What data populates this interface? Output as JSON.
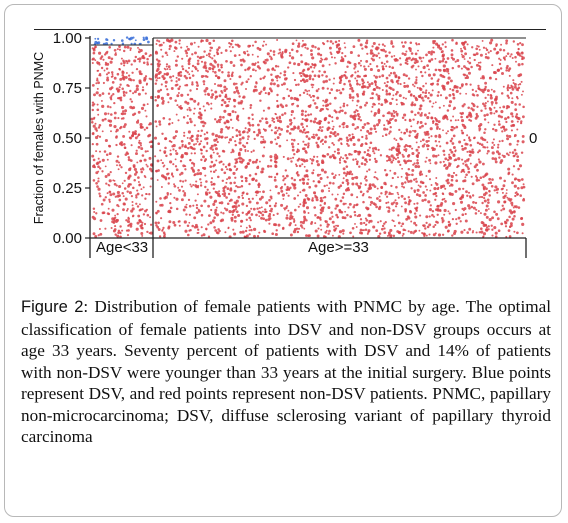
{
  "chart_data": {
    "type": "scatter",
    "ylabel": "Fraction of females with PNMC",
    "ylim": [
      0,
      1
    ],
    "y_ticks": [
      "0.00",
      "0.25",
      "0.50",
      "0.75",
      "1.00"
    ],
    "categories": [
      "Age<33",
      "Age>=33"
    ],
    "right_label": "0",
    "category_fraction_boundary": [
      0.963,
      0.995
    ],
    "series": [
      {
        "name": "DSV",
        "color": "#3a6fd8"
      },
      {
        "name": "non-DSV",
        "color": "#d9434b"
      }
    ]
  },
  "caption": {
    "label": "Figure 2",
    "text": ": Distribution of female patients with PNMC by age. The optimal classification of female patients into DSV and non-DSV groups occurs at age 33 years. Seventy percent of patients with DSV and 14% of patients with non-DSV were younger than 33 years at the initial surgery. Blue points represent DSV, and red points represent non-DSV patients. PNMC, papillary non-microcarcinoma; DSV, diffuse sclerosing variant of papillary thyroid carcinoma"
  }
}
